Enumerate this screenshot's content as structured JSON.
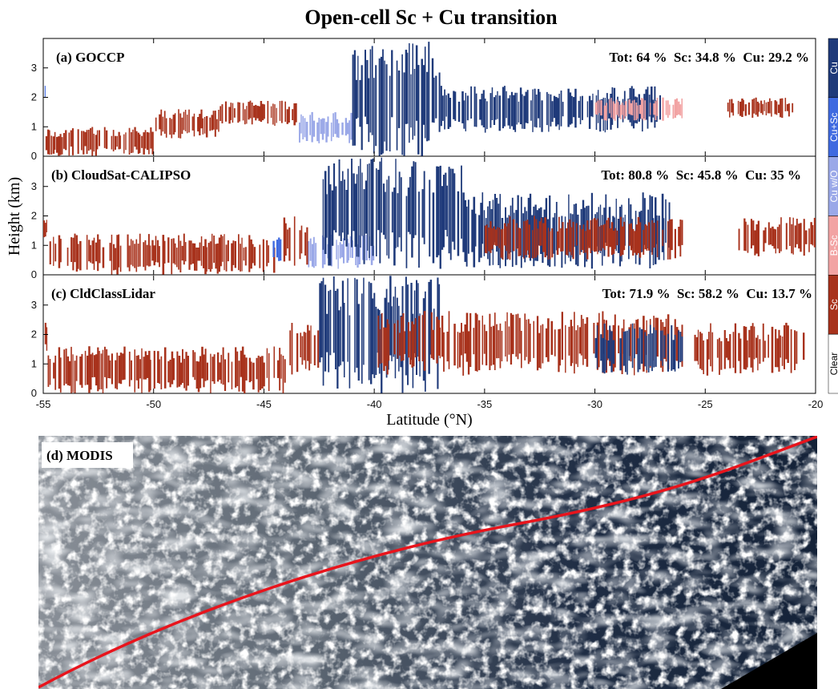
{
  "chart_data": {
    "type": "bar",
    "title": "Open-cell Sc + Cu transition",
    "xlabel": "Latitude (°N)",
    "ylabel": "Height (km)",
    "xlim": [
      -55,
      -20
    ],
    "ylim": [
      0,
      4
    ],
    "x_ticks": [
      "-55",
      "-50",
      "-45",
      "-40",
      "-35",
      "-30",
      "-25",
      "-20"
    ],
    "y_ticks": [
      "0",
      "1",
      "2",
      "3"
    ],
    "legend": {
      "placement": "right colorbar",
      "entries": [
        {
          "label": "Cu",
          "color": "#1f3a7a"
        },
        {
          "label": "Cu+Sc",
          "color": "#3f6ae0"
        },
        {
          "label": "Cu w/O",
          "color": "#9aa8e8"
        },
        {
          "label": "B-Sc",
          "color": "#f2a3a3"
        },
        {
          "label": "Sc",
          "color": "#a8321c"
        },
        {
          "label": "Clear",
          "color": "#ffffff"
        }
      ]
    },
    "panels": [
      {
        "label": "(a) GOCCP",
        "stats": "Tot: 64 %  Sc: 34.8 %  Cu: 29.2 %",
        "segments": [
          {
            "class": "Cu+Sc",
            "x": [
              -55,
              -54.8
            ],
            "y": [
              1.8,
              2.4
            ]
          },
          {
            "class": "Sc",
            "x": [
              -54.9,
              -50
            ],
            "y": [
              0,
              1.0
            ]
          },
          {
            "class": "Sc",
            "x": [
              -50,
              -47
            ],
            "y": [
              0.6,
              1.6
            ]
          },
          {
            "class": "Sc",
            "x": [
              -47,
              -43.5
            ],
            "y": [
              1.0,
              1.9
            ]
          },
          {
            "class": "Cu w/O",
            "x": [
              -43.5,
              -41
            ],
            "y": [
              0.4,
              1.5
            ]
          },
          {
            "class": "Cu",
            "x": [
              -41,
              -37
            ],
            "y": [
              0,
              3.9
            ]
          },
          {
            "class": "Cu",
            "x": [
              -37,
              -27
            ],
            "y": [
              0.8,
              2.4
            ]
          },
          {
            "class": "B-Sc",
            "x": [
              -30,
              -26
            ],
            "y": [
              1.2,
              2.0
            ]
          },
          {
            "class": "Sc",
            "x": [
              -24,
              -21
            ],
            "y": [
              1.3,
              2.0
            ]
          }
        ]
      },
      {
        "label": "(b) CloudSat-CALIPSO",
        "stats": "Tot: 80.8 %  Sc: 45.8 %  Cu: 35 %",
        "segments": [
          {
            "class": "Sc",
            "x": [
              -55,
              -54.8
            ],
            "y": [
              1.2,
              2.0
            ]
          },
          {
            "class": "Sc",
            "x": [
              -54.8,
              -44.5
            ],
            "y": [
              0,
              1.4
            ]
          },
          {
            "class": "Cu+Sc",
            "x": [
              -44.6,
              -44.2
            ],
            "y": [
              0.4,
              1.3
            ]
          },
          {
            "class": "Sc",
            "x": [
              -44.2,
              -43
            ],
            "y": [
              0.3,
              2.0
            ]
          },
          {
            "class": "Cu w/O",
            "x": [
              -43,
              -40
            ],
            "y": [
              0.2,
              1.4
            ]
          },
          {
            "class": "Cu",
            "x": [
              -42.5,
              -36
            ],
            "y": [
              0.2,
              4.0
            ]
          },
          {
            "class": "Cu",
            "x": [
              -36,
              -26.5
            ],
            "y": [
              0.2,
              2.8
            ]
          },
          {
            "class": "Sc",
            "x": [
              -35,
              -26
            ],
            "y": [
              0.5,
              2.0
            ]
          },
          {
            "class": "Sc",
            "x": [
              -23.5,
              -20
            ],
            "y": [
              0.6,
              2.0
            ]
          }
        ]
      },
      {
        "label": "(c) CldClassLidar",
        "stats": "Tot: 71.9 %  Sc: 58.2 %  Cu: 13.7 %",
        "segments": [
          {
            "class": "Sc",
            "x": [
              -55,
              -54.8
            ],
            "y": [
              1.4,
              2.4
            ]
          },
          {
            "class": "Sc",
            "x": [
              -54.8,
              -44
            ],
            "y": [
              0,
              1.6
            ]
          },
          {
            "class": "Sc",
            "x": [
              -44,
              -42.5
            ],
            "y": [
              0.6,
              2.4
            ]
          },
          {
            "class": "Cu",
            "x": [
              -42.5,
              -37
            ],
            "y": [
              0,
              4.0
            ]
          },
          {
            "class": "Sc",
            "x": [
              -40,
              -26
            ],
            "y": [
              0.6,
              2.8
            ]
          },
          {
            "class": "Cu",
            "x": [
              -30,
              -26
            ],
            "y": [
              0.6,
              2.4
            ]
          },
          {
            "class": "Sc",
            "x": [
              -25.5,
              -20.5
            ],
            "y": [
              0.6,
              2.4
            ]
          }
        ]
      }
    ],
    "image_panel": {
      "label": "(d) MODIS"
    }
  },
  "colors": {
    "Cu": "#1f3a7a",
    "Cu+Sc": "#3f6ae0",
    "Cu w/O": "#9aa8e8",
    "B-Sc": "#f2a3a3",
    "Sc": "#a8321c",
    "track": "#e8141c"
  }
}
